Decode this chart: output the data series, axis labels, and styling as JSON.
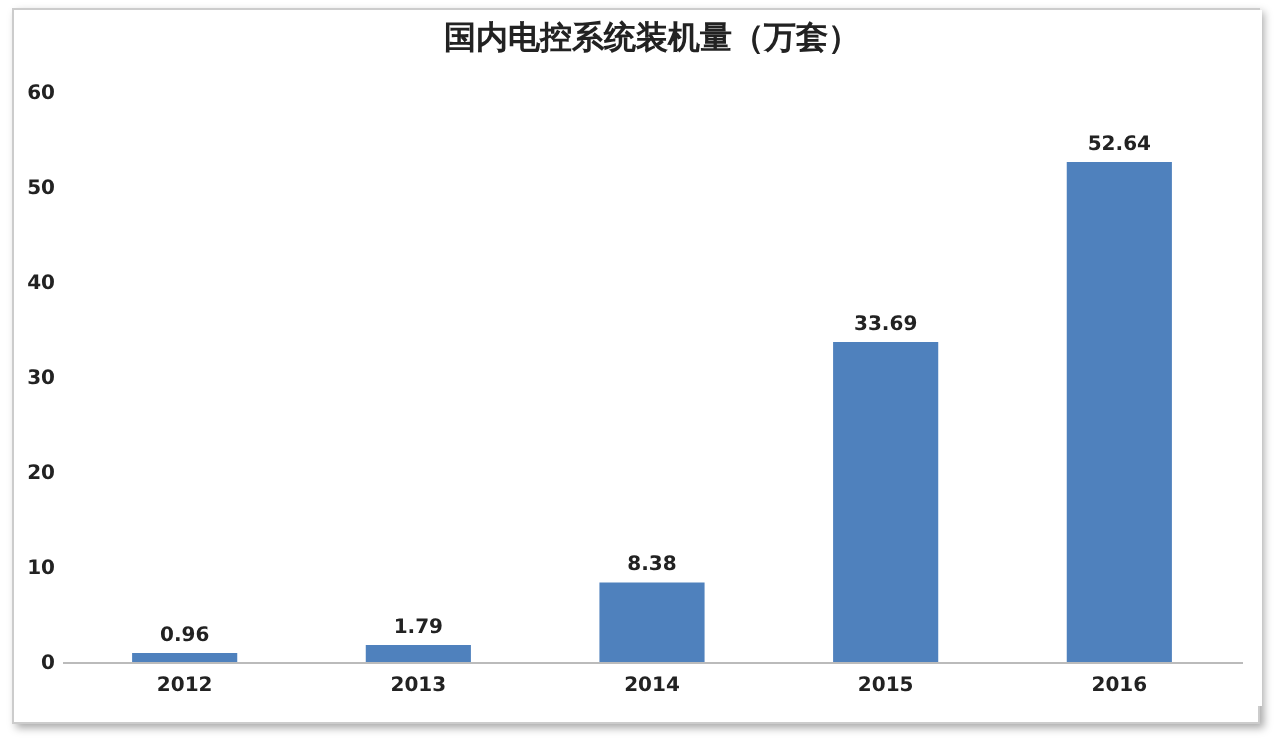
{
  "chart_data": {
    "type": "bar",
    "title": "国内电控系统装机量（万套）",
    "categories": [
      "2012",
      "2013",
      "2014",
      "2015",
      "2016"
    ],
    "values": [
      0.96,
      1.79,
      8.38,
      33.69,
      52.64
    ],
    "color": "#4f81bd",
    "ylim": [
      0,
      60
    ],
    "yticks": [
      0,
      10,
      20,
      30,
      40,
      50,
      60
    ],
    "grid": false,
    "data_labels": true
  }
}
